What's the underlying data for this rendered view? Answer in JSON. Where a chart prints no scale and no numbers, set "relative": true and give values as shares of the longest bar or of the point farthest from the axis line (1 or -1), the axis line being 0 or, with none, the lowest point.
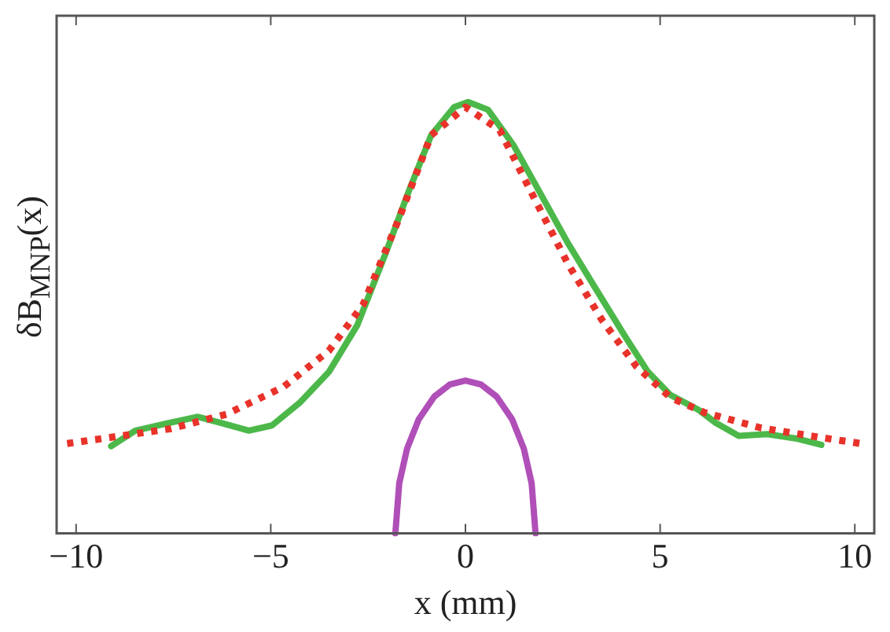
{
  "chart_data": {
    "type": "line",
    "relative": true,
    "xlabel": "x (mm)",
    "ylabel": "δB$_{MNP}$(x)",
    "xlim": [
      -10.5,
      10.5
    ],
    "xticks": [
      {
        "value": -10,
        "label": "−10"
      },
      {
        "value": -5,
        "label": "−5"
      },
      0,
      5,
      10
    ],
    "grid": false,
    "legend": false,
    "marker": "none",
    "series": [
      {
        "color": "#e8322a",
        "line_style": "dotted",
        "x": [
          -10.23,
          -9.06,
          -7.6,
          -6.14,
          -4.68,
          -3.51,
          -2.63,
          -1.75,
          -0.88,
          0,
          0.88,
          1.75,
          2.63,
          3.51,
          4.39,
          5.26,
          6.14,
          7.6,
          9.06,
          10.16
        ],
        "values": [
          0.208,
          0.223,
          0.242,
          0.276,
          0.339,
          0.423,
          0.53,
          0.72,
          0.923,
          0.988,
          0.935,
          0.78,
          0.625,
          0.494,
          0.387,
          0.315,
          0.28,
          0.244,
          0.223,
          0.208
        ]
      },
      {
        "color": "#4cb84a",
        "line_style": "solid",
        "x": [
          -9.1,
          -8.48,
          -7.6,
          -6.87,
          -6.29,
          -5.56,
          -4.97,
          -4.24,
          -3.5,
          -2.78,
          -2.05,
          -1.46,
          -0.88,
          -0.29,
          0.07,
          0.58,
          1.24,
          1.9,
          2.63,
          3.36,
          4.09,
          4.68,
          5.26,
          5.99,
          6.43,
          7.02,
          7.75,
          8.48,
          9.14
        ],
        "values": [
          0.202,
          0.238,
          0.256,
          0.27,
          0.256,
          0.238,
          0.25,
          0.304,
          0.375,
          0.482,
          0.649,
          0.792,
          0.923,
          0.988,
          1,
          0.982,
          0.899,
          0.792,
          0.673,
          0.565,
          0.458,
          0.375,
          0.321,
          0.286,
          0.256,
          0.226,
          0.23,
          0.22,
          0.205
        ]
      },
      {
        "color": "#b04fb8",
        "line_style": "solid",
        "x": [
          -1.8,
          -1.7,
          -1.5,
          -1.2,
          -0.8,
          -0.4,
          0,
          0.4,
          0.8,
          1.2,
          1.5,
          1.7,
          1.8
        ],
        "values": [
          0,
          0.116,
          0.196,
          0.264,
          0.317,
          0.345,
          0.354,
          0.345,
          0.317,
          0.264,
          0.196,
          0.116,
          0
        ]
      }
    ]
  }
}
